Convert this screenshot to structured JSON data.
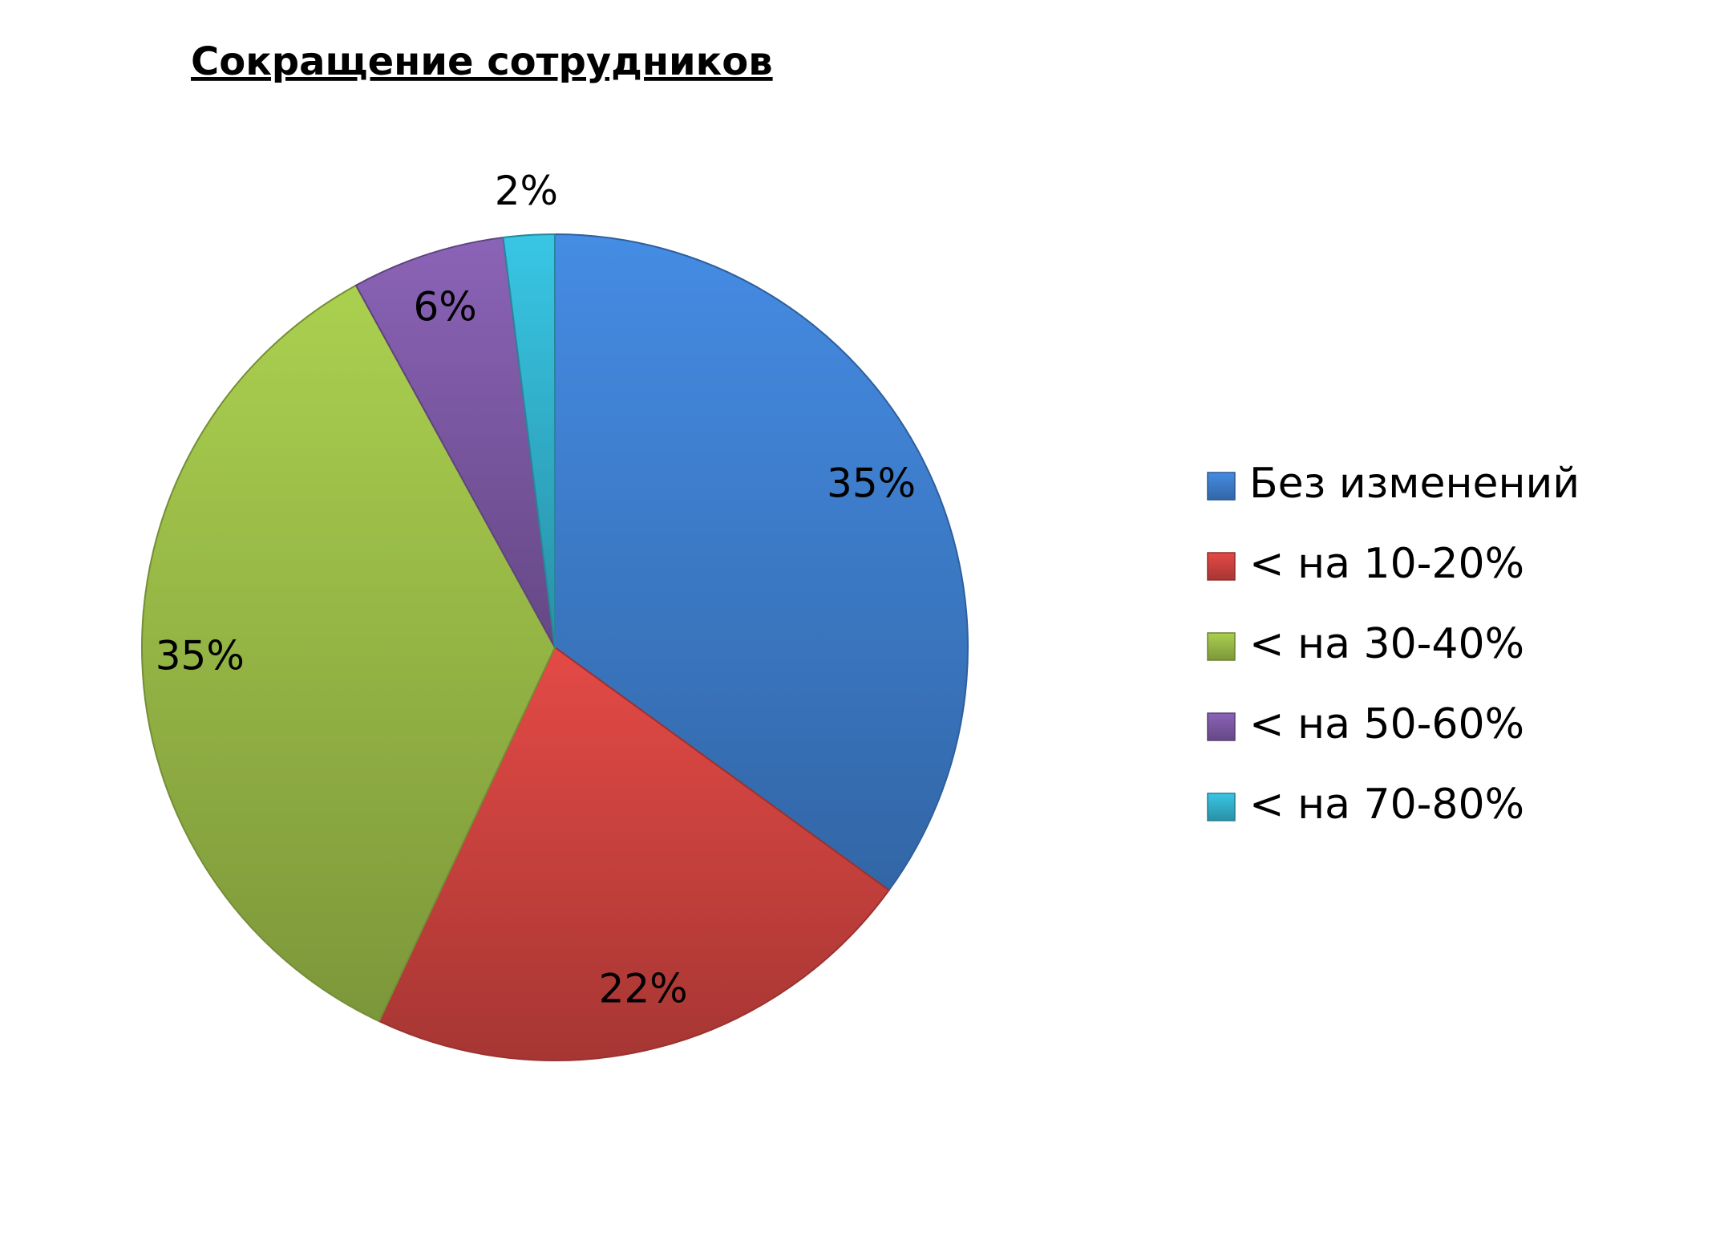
{
  "chart_data": {
    "type": "pie",
    "title": "Сокращение сотрудников",
    "categories": [
      "Без изменений",
      "< на 10-20%",
      "< на 30-40%",
      "< на 50-60%",
      "< на 70-80%"
    ],
    "values": [
      35,
      22,
      35,
      6,
      2
    ],
    "value_labels": [
      "35%",
      "22%",
      "35%",
      "6%",
      "2%"
    ],
    "colors": [
      "#3f7fcf",
      "#cf4340",
      "#9bbd48",
      "#7e5aa6",
      "#33b4cf"
    ],
    "legend": "right"
  }
}
